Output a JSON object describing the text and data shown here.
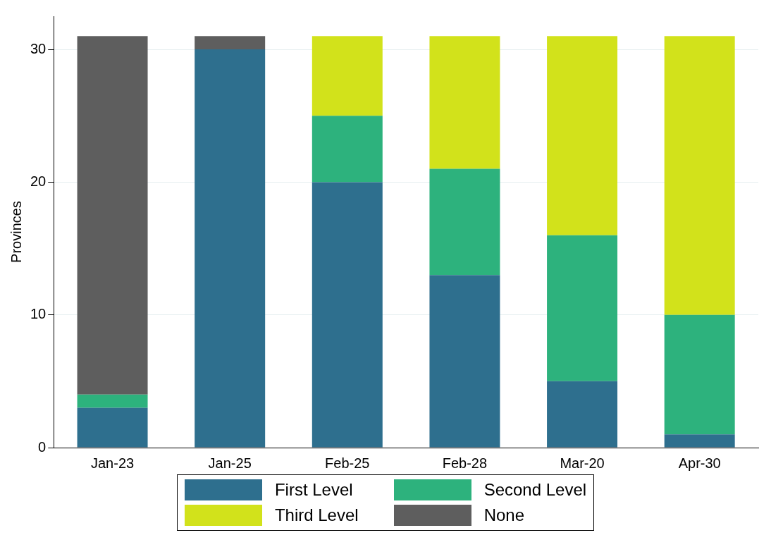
{
  "chart_data": {
    "type": "bar",
    "ylabel": "Provinces",
    "categories": [
      "Jan-23",
      "Jan-25",
      "Feb-25",
      "Feb-28",
      "Mar-20",
      "Apr-30"
    ],
    "stacked": true,
    "ylim": [
      0,
      32.5
    ],
    "yticks": [
      0,
      10,
      20,
      30
    ],
    "grid": "y",
    "legend": "bottom",
    "series": [
      {
        "name": "First Level",
        "color": "#2e6f8e",
        "values": [
          3,
          30,
          20,
          13,
          5,
          1
        ]
      },
      {
        "name": "Second Level",
        "color": "#2db27d",
        "values": [
          1,
          0,
          5,
          8,
          11,
          9
        ]
      },
      {
        "name": "Third Level",
        "color": "#d2e21b",
        "values": [
          0,
          0,
          6,
          10,
          15,
          21
        ]
      },
      {
        "name": "None",
        "color": "#5e5e5e",
        "values": [
          27,
          1,
          0,
          0,
          0,
          0
        ]
      }
    ]
  }
}
